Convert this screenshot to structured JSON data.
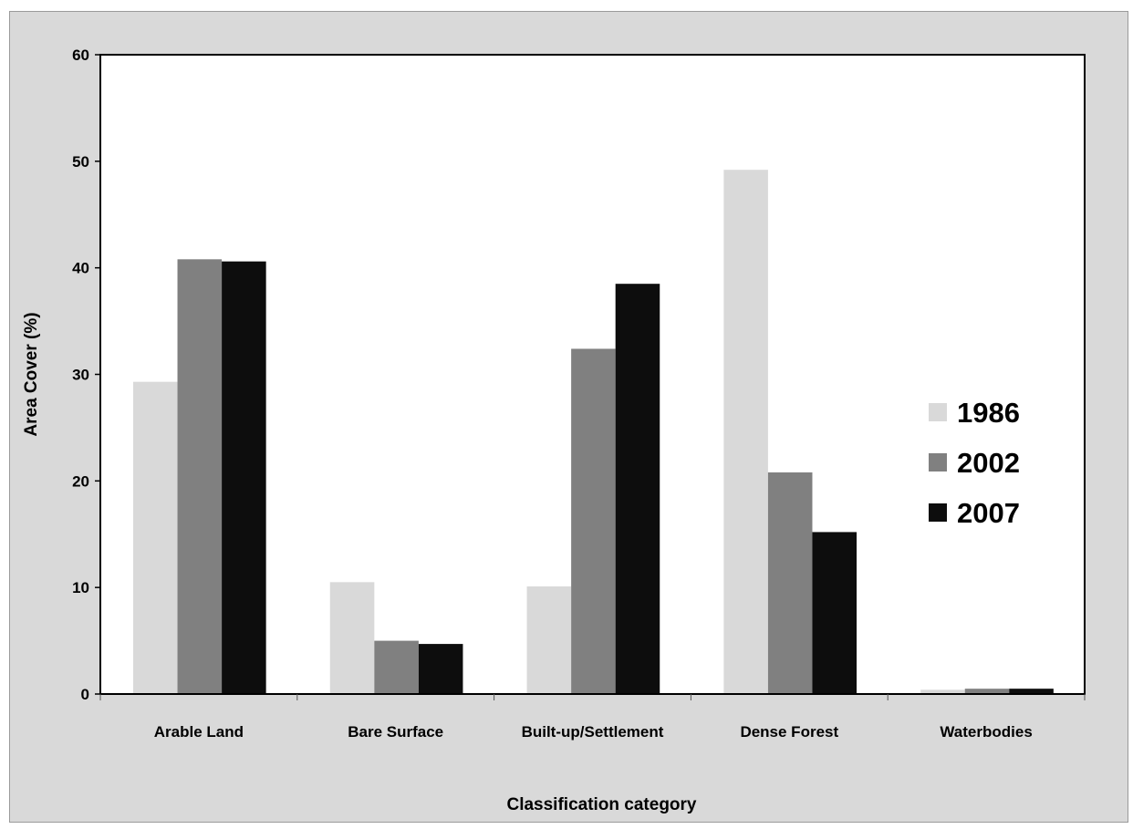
{
  "chart_data": {
    "type": "bar",
    "title": "",
    "xlabel": "Classification  category",
    "ylabel": "Area Cover (%)",
    "ylim": [
      0,
      60
    ],
    "yticks": [
      0,
      10,
      20,
      30,
      40,
      50,
      60
    ],
    "categories": [
      "Arable Land",
      "Bare Surface",
      "Built-up/Settlement",
      "Dense Forest",
      "Waterbodies"
    ],
    "series": [
      {
        "name": "1986",
        "color": "#d9d9d9",
        "values": [
          29.3,
          10.5,
          10.1,
          49.2,
          0.4
        ]
      },
      {
        "name": "2002",
        "color": "#808080",
        "values": [
          40.8,
          5.0,
          32.4,
          20.8,
          0.5
        ]
      },
      {
        "name": "2007",
        "color": "#0d0d0d",
        "values": [
          40.6,
          4.7,
          38.5,
          15.2,
          0.5
        ]
      }
    ],
    "legend": "right",
    "grid": false,
    "background_color": "#d9d9d9",
    "plot_background_color": "#ffffff"
  }
}
